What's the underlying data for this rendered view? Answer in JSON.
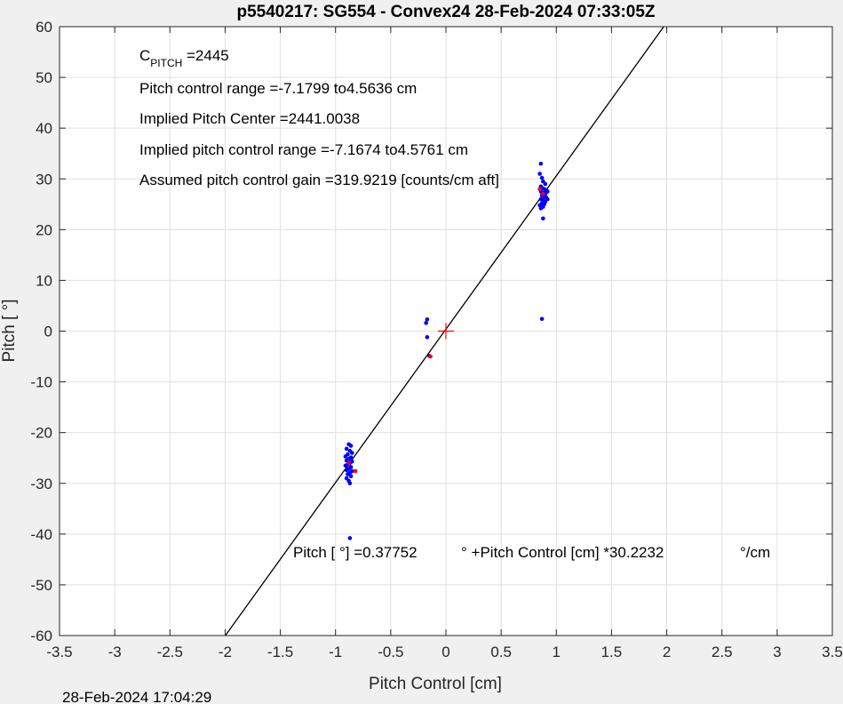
{
  "chart_data": {
    "type": "scatter",
    "title": "p5540217: SG554 - Convex24 28-Feb-2024 07:33:05Z",
    "xlabel": "Pitch Control [cm]",
    "ylabel": "Pitch [  °]",
    "xlim": [
      -3.5,
      3.5
    ],
    "ylim": [
      -60,
      60
    ],
    "xticks": [
      -3.5,
      -3,
      -2.5,
      -2,
      -1.5,
      -1,
      -0.5,
      0,
      0.5,
      1,
      1.5,
      2,
      2.5,
      3,
      3.5
    ],
    "yticks": [
      60,
      50,
      40,
      30,
      20,
      10,
      0,
      -10,
      -20,
      -30,
      -40,
      -50,
      -60
    ],
    "grid": true,
    "legend": "none",
    "fit_line": {
      "intercept": 0.37752,
      "slope": 30.2232,
      "color": "#000000"
    },
    "center_marker": {
      "x": 0,
      "y": 0,
      "color": "#ff0000"
    },
    "series": [
      {
        "marker_color": "#0000ff",
        "points": [
          [
            0.86,
            33.0
          ],
          [
            0.85,
            31.0
          ],
          [
            0.87,
            30.2
          ],
          [
            0.88,
            29.5
          ],
          [
            0.9,
            29.0
          ],
          [
            0.86,
            28.5
          ],
          [
            0.87,
            28.2
          ],
          [
            0.89,
            28.0
          ],
          [
            0.91,
            27.8
          ],
          [
            0.92,
            27.5
          ],
          [
            0.86,
            27.5
          ],
          [
            0.88,
            27.2
          ],
          [
            0.9,
            27.0
          ],
          [
            0.87,
            26.8
          ],
          [
            0.89,
            26.5
          ],
          [
            0.91,
            26.3
          ],
          [
            0.92,
            26.0
          ],
          [
            0.86,
            26.0
          ],
          [
            0.88,
            25.8
          ],
          [
            0.9,
            25.5
          ],
          [
            0.87,
            25.2
          ],
          [
            0.89,
            25.0
          ],
          [
            0.85,
            24.8
          ],
          [
            0.88,
            24.5
          ],
          [
            0.86,
            24.2
          ],
          [
            0.88,
            22.2
          ],
          [
            0.87,
            2.4
          ],
          [
            -0.17,
            2.3
          ],
          [
            -0.18,
            1.6
          ],
          [
            -0.17,
            -1.2
          ],
          [
            -0.15,
            -4.9
          ],
          [
            -0.88,
            -22.3
          ],
          [
            -0.86,
            -22.6
          ],
          [
            -0.9,
            -23.2
          ],
          [
            -0.87,
            -23.6
          ],
          [
            -0.85,
            -24.0
          ],
          [
            -0.89,
            -24.3
          ],
          [
            -0.91,
            -24.7
          ],
          [
            -0.86,
            -24.9
          ],
          [
            -0.88,
            -25.2
          ],
          [
            -0.9,
            -25.5
          ],
          [
            -0.85,
            -25.7
          ],
          [
            -0.87,
            -26.0
          ],
          [
            -0.89,
            -26.3
          ],
          [
            -0.91,
            -26.5
          ],
          [
            -0.86,
            -26.8
          ],
          [
            -0.88,
            -27.1
          ],
          [
            -0.9,
            -27.4
          ],
          [
            -0.85,
            -27.6
          ],
          [
            -0.87,
            -27.9
          ],
          [
            -0.89,
            -28.2
          ],
          [
            -0.86,
            -28.6
          ],
          [
            -0.9,
            -29.0
          ],
          [
            -0.88,
            -29.5
          ],
          [
            -0.87,
            -30.0
          ],
          [
            -0.87,
            -40.8
          ]
        ]
      },
      {
        "marker_color": "#ff0000",
        "points": [
          [
            0.85,
            28.0
          ],
          [
            0.88,
            27.0
          ],
          [
            -0.14,
            -5.0
          ],
          [
            -0.82,
            -27.6
          ],
          [
            -0.88,
            -26.0
          ]
        ]
      }
    ]
  },
  "annotations": {
    "cpitch_main": "C",
    "cpitch_sub": "PITCH",
    "cpitch_value": " =2445",
    "line2": "Pitch control range =-7.1799 to4.5636 cm",
    "line3": "Implied Pitch Center =2441.0038",
    "line4": "Implied pitch control range =-7.1674 to4.5761 cm",
    "line5": "Assumed pitch control gain =319.9219 [counts/cm aft]",
    "fit_part1": "Pitch [  °] =0.37752",
    "fit_part2": "° +Pitch Control [cm] *30.2232",
    "fit_part3": "°/cm"
  },
  "footer": {
    "timestamp": "28-Feb-2024 17:04:29"
  },
  "colors": {
    "background": "#f0f0f0",
    "plot_area": "#ffffff",
    "grid": "#e0e0e0",
    "axes": "#262626"
  }
}
